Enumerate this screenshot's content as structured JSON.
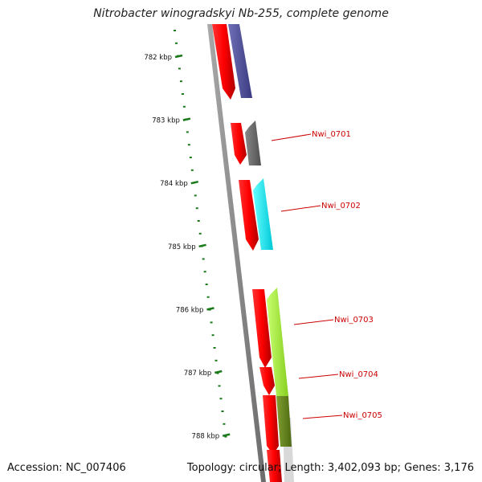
{
  "title": "Nitrobacter winogradskyi Nb-255, complete genome",
  "footer": {
    "accession": "Accession: NC_007406",
    "topology": "Topology: circular; Length: 3,402,093 bp; Genes: 3,176"
  },
  "colors": {
    "strand_red": "#ff0000",
    "label_red": "#cc0000",
    "scale_green": "#1a7a1a",
    "backbone": "#888888",
    "purple": "#55559a",
    "gray": "#6e6e6e",
    "cyan": "#00eeee",
    "lime": "#a8f040",
    "olive": "#6a8a20"
  },
  "scale_ticks": [
    {
      "label": "782 kbp",
      "kbp": 782
    },
    {
      "label": "783 kbp",
      "kbp": 783
    },
    {
      "label": "784 kbp",
      "kbp": 784
    },
    {
      "label": "785 kbp",
      "kbp": 785
    },
    {
      "label": "786 kbp",
      "kbp": 786
    },
    {
      "label": "787 kbp",
      "kbp": 787
    },
    {
      "label": "788 kbp",
      "kbp": 788
    }
  ],
  "genes": [
    {
      "locus": "Nwi_0701",
      "color": "#6e6e6e"
    },
    {
      "locus": "Nwi_0702",
      "color": "#00eeee"
    },
    {
      "locus": "Nwi_0703",
      "color": "#a8f040"
    },
    {
      "locus": "Nwi_0704",
      "color": "#a8f040"
    },
    {
      "locus": "Nwi_0705",
      "color": "#6a8a20"
    }
  ]
}
